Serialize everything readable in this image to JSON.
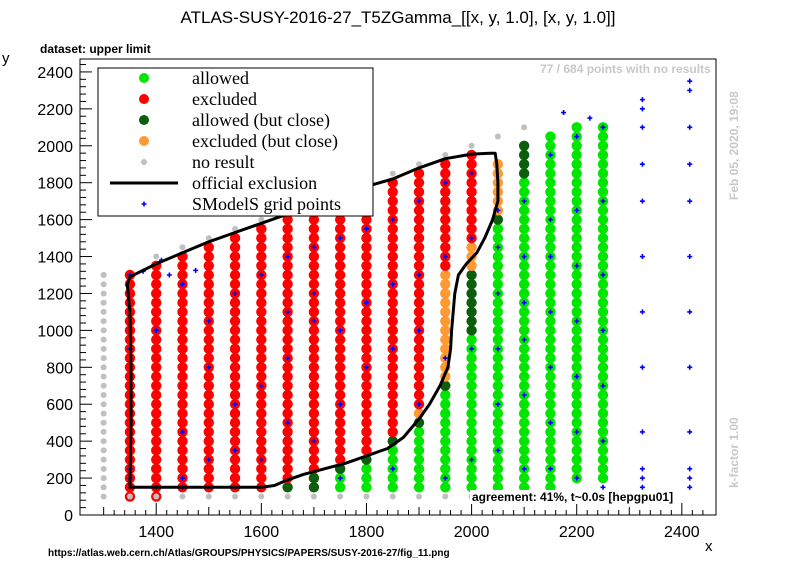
{
  "title": "ATLAS-SUSY-2016-27_T5ZGamma_[[x, y, 1.0], [x, y, 1.0]]",
  "dataset_label": "dataset: upper limit",
  "no_result_note": "77 / 684 points with no results",
  "agreement": "agreement: 41%, t~0.0s [hepgpu01]",
  "footer_url": "https://atlas.web.cern.ch/Atlas/GROUPS/PHYSICS/PAPERS/SUSY-2016-27/fig_11.png",
  "timestamp": "Feb 05, 2020, 19:08",
  "kfactor": "k-factor 1.00",
  "colors": {
    "allowed": "#00e600",
    "excluded": "#ff0000",
    "allowed_close": "#0b5e0b",
    "excluded_close": "#ff9a33",
    "no_result": "#c0c0c0",
    "official": "#000000",
    "grid_point": "#0000ff"
  },
  "chart_data": {
    "type": "scatter",
    "title": "ATLAS-SUSY-2016-27_T5ZGamma_[[x, y, 1.0], [x, y, 1.0]]",
    "xlabel": "x",
    "ylabel": "y",
    "xlim": [
      1255,
      2465
    ],
    "ylim": [
      0,
      2470
    ],
    "x_ticks": [
      1400,
      1600,
      1800,
      2000,
      2200,
      2400
    ],
    "y_ticks": [
      0,
      200,
      400,
      600,
      800,
      1000,
      1200,
      1400,
      1600,
      1800,
      2000,
      2200,
      2400
    ],
    "grid": false,
    "legend_position": "top-left",
    "legend": [
      {
        "label": "allowed",
        "kind": "allowed"
      },
      {
        "label": "excluded",
        "kind": "excluded"
      },
      {
        "label": "allowed (but close)",
        "kind": "allowed_close"
      },
      {
        "label": "excluded (but close)",
        "kind": "excluded_close"
      },
      {
        "label": "no result",
        "kind": "no_result"
      },
      {
        "label": "official exclusion",
        "kind": "official"
      },
      {
        "label": "SModelS grid points",
        "kind": "grid_point"
      }
    ],
    "columns": [
      {
        "x": 1300,
        "y_min": 100,
        "y_max": 1300,
        "y_step": 50,
        "bands": [
          [
            "no_result",
            1300
          ]
        ]
      },
      {
        "x": 1350,
        "y_min": 100,
        "y_max": 1300,
        "y_step": 50,
        "bands": [
          [
            "excluded",
            1300
          ]
        ]
      },
      {
        "x": 1400,
        "y_min": 100,
        "y_max": 1350,
        "y_step": 50,
        "bands": [
          [
            "excluded",
            1350
          ]
        ]
      },
      {
        "x": 1450,
        "y_min": 150,
        "y_max": 1400,
        "y_step": 50,
        "bands": [
          [
            "excluded",
            1400
          ]
        ]
      },
      {
        "x": 1500,
        "y_min": 150,
        "y_max": 1450,
        "y_step": 50,
        "bands": [
          [
            "excluded",
            1450
          ]
        ]
      },
      {
        "x": 1550,
        "y_min": 150,
        "y_max": 1500,
        "y_step": 50,
        "bands": [
          [
            "excluded",
            1500
          ]
        ]
      },
      {
        "x": 1600,
        "y_min": 150,
        "y_max": 1550,
        "y_step": 50,
        "bands": [
          [
            "excluded",
            1550
          ]
        ]
      },
      {
        "x": 1650,
        "y_min": 150,
        "y_max": 1600,
        "y_step": 50,
        "bands": [
          [
            "allowed_close",
            150
          ],
          [
            "excluded",
            1600
          ]
        ]
      },
      {
        "x": 1700,
        "y_min": 150,
        "y_max": 1650,
        "y_step": 50,
        "bands": [
          [
            "allowed_close",
            200
          ],
          [
            "excluded",
            1650
          ]
        ]
      },
      {
        "x": 1750,
        "y_min": 150,
        "y_max": 1700,
        "y_step": 50,
        "bands": [
          [
            "allowed",
            200
          ],
          [
            "allowed_close",
            250
          ],
          [
            "excluded",
            1700
          ]
        ]
      },
      {
        "x": 1800,
        "y_min": 150,
        "y_max": 1750,
        "y_step": 50,
        "bands": [
          [
            "allowed",
            250
          ],
          [
            "allowed_close",
            300
          ],
          [
            "excluded",
            1750
          ]
        ]
      },
      {
        "x": 1850,
        "y_min": 150,
        "y_max": 1800,
        "y_step": 50,
        "bands": [
          [
            "allowed",
            350
          ],
          [
            "allowed_close",
            400
          ],
          [
            "excluded",
            1800
          ]
        ]
      },
      {
        "x": 1900,
        "y_min": 150,
        "y_max": 1850,
        "y_step": 50,
        "bands": [
          [
            "allowed",
            450
          ],
          [
            "allowed_close",
            500
          ],
          [
            "excluded_close",
            550
          ],
          [
            "excluded",
            1850
          ]
        ]
      },
      {
        "x": 1950,
        "y_min": 150,
        "y_max": 1900,
        "y_step": 50,
        "bands": [
          [
            "allowed",
            650
          ],
          [
            "allowed_close",
            700
          ],
          [
            "excluded_close",
            1300
          ],
          [
            "excluded",
            1900
          ]
        ]
      },
      {
        "x": 2000,
        "y_min": 150,
        "y_max": 1950,
        "y_step": 50,
        "bands": [
          [
            "allowed",
            950
          ],
          [
            "allowed_close",
            1300
          ],
          [
            "excluded_close",
            1450
          ],
          [
            "excluded",
            1950
          ]
        ]
      },
      {
        "x": 2050,
        "y_min": 150,
        "y_max": 1900,
        "y_step": 50,
        "bands": [
          [
            "allowed",
            1550
          ],
          [
            "allowed_close",
            1600
          ],
          [
            "excluded_close",
            1900
          ]
        ]
      },
      {
        "x": 2100,
        "y_min": 150,
        "y_max": 2000,
        "y_step": 50,
        "bands": [
          [
            "allowed",
            1800
          ],
          [
            "allowed_close",
            2000
          ]
        ]
      },
      {
        "x": 2150,
        "y_min": 150,
        "y_max": 2050,
        "y_step": 50,
        "bands": [
          [
            "allowed",
            2050
          ]
        ]
      },
      {
        "x": 2200,
        "y_min": 200,
        "y_max": 2100,
        "y_step": 50,
        "bands": [
          [
            "allowed",
            2100
          ]
        ]
      },
      {
        "x": 2250,
        "y_min": 200,
        "y_max": 2100,
        "y_step": 50,
        "bands": [
          [
            "allowed",
            2100
          ]
        ]
      }
    ],
    "no_result_extra": [
      [
        1300,
        1300
      ],
      [
        1350,
        100
      ],
      [
        1400,
        100
      ],
      [
        1450,
        100
      ],
      [
        1500,
        100
      ],
      [
        1550,
        100
      ],
      [
        1600,
        100
      ],
      [
        1650,
        100
      ],
      [
        1700,
        100
      ],
      [
        1750,
        100
      ],
      [
        1800,
        100
      ],
      [
        1850,
        100
      ],
      [
        1900,
        100
      ],
      [
        1950,
        100
      ],
      [
        2000,
        100
      ],
      [
        2050,
        100
      ],
      [
        2100,
        100
      ],
      [
        1400,
        1400
      ],
      [
        1450,
        1450
      ],
      [
        1500,
        1500
      ],
      [
        1550,
        1550
      ],
      [
        1600,
        1600
      ],
      [
        1650,
        1650
      ],
      [
        1700,
        1700
      ],
      [
        1750,
        1750
      ],
      [
        1800,
        1800
      ],
      [
        1850,
        1850
      ],
      [
        1900,
        1900
      ],
      [
        1950,
        1950
      ],
      [
        2000,
        2000
      ],
      [
        2050,
        2050
      ],
      [
        2100,
        2100
      ]
    ],
    "grid_points": [
      [
        1350,
        250
      ],
      [
        1350,
        200
      ],
      [
        1350,
        1300
      ],
      [
        1375,
        1320
      ],
      [
        1410,
        1380
      ],
      [
        1425,
        1300
      ],
      [
        1350,
        900
      ],
      [
        1400,
        1000
      ],
      [
        1450,
        1250
      ],
      [
        1475,
        1325
      ],
      [
        1500,
        1050
      ],
      [
        1550,
        1200
      ],
      [
        1500,
        800
      ],
      [
        1550,
        600
      ],
      [
        1450,
        450
      ],
      [
        1450,
        200
      ],
      [
        1500,
        300
      ],
      [
        1550,
        350
      ],
      [
        1400,
        150
      ],
      [
        1450,
        150
      ],
      [
        1600,
        1300
      ],
      [
        1650,
        1400
      ],
      [
        1700,
        1450
      ],
      [
        1650,
        1100
      ],
      [
        1700,
        1200
      ],
      [
        1650,
        850
      ],
      [
        1600,
        700
      ],
      [
        1650,
        500
      ],
      [
        1700,
        400
      ],
      [
        1600,
        300
      ],
      [
        1700,
        1050
      ],
      [
        1750,
        1500
      ],
      [
        1800,
        1550
      ],
      [
        1850,
        1600
      ],
      [
        1750,
        1000
      ],
      [
        1800,
        1150
      ],
      [
        1850,
        1250
      ],
      [
        1750,
        600
      ],
      [
        1800,
        800
      ],
      [
        1850,
        900
      ],
      [
        1750,
        200
      ],
      [
        1850,
        250
      ],
      [
        1900,
        1700
      ],
      [
        1950,
        1800
      ],
      [
        2000,
        1850
      ],
      [
        1900,
        1300
      ],
      [
        1950,
        1400
      ],
      [
        2000,
        1500
      ],
      [
        1900,
        1000
      ],
      [
        1950,
        850
      ],
      [
        2000,
        900
      ],
      [
        1900,
        600
      ],
      [
        2000,
        300
      ],
      [
        1950,
        200
      ],
      [
        2050,
        1650
      ],
      [
        2100,
        1700
      ],
      [
        2050,
        1450
      ],
      [
        2100,
        1400
      ],
      [
        2050,
        1200
      ],
      [
        2100,
        1150
      ],
      [
        2050,
        900
      ],
      [
        2100,
        950
      ],
      [
        2050,
        600
      ],
      [
        2100,
        650
      ],
      [
        2050,
        350
      ],
      [
        2100,
        250
      ],
      [
        2150,
        1950
      ],
      [
        2200,
        2050
      ],
      [
        2250,
        2100
      ],
      [
        2150,
        1600
      ],
      [
        2200,
        1650
      ],
      [
        2250,
        1700
      ],
      [
        2150,
        1400
      ],
      [
        2200,
        1350
      ],
      [
        2250,
        1300
      ],
      [
        2150,
        1100
      ],
      [
        2200,
        1050
      ],
      [
        2250,
        1000
      ],
      [
        2150,
        800
      ],
      [
        2200,
        750
      ],
      [
        2250,
        700
      ],
      [
        2150,
        500
      ],
      [
        2200,
        450
      ],
      [
        2250,
        400
      ],
      [
        2150,
        250
      ],
      [
        2200,
        200
      ],
      [
        2250,
        150
      ],
      [
        2175,
        2180
      ],
      [
        2225,
        2150
      ],
      [
        2325,
        2250
      ],
      [
        2325,
        2200
      ],
      [
        2325,
        2100
      ],
      [
        2325,
        1900
      ],
      [
        2325,
        1700
      ],
      [
        2325,
        1400
      ],
      [
        2325,
        1100
      ],
      [
        2325,
        800
      ],
      [
        2325,
        450
      ],
      [
        2325,
        250
      ],
      [
        2325,
        200
      ],
      [
        2325,
        150
      ],
      [
        2415,
        2350
      ],
      [
        2415,
        2300
      ],
      [
        2415,
        2100
      ],
      [
        2415,
        1900
      ],
      [
        2415,
        1700
      ],
      [
        2415,
        1400
      ],
      [
        2415,
        1100
      ],
      [
        2415,
        800
      ],
      [
        2415,
        450
      ],
      [
        2415,
        250
      ],
      [
        2415,
        200
      ],
      [
        2415,
        150
      ]
    ],
    "official_exclusion": [
      [
        1350,
        150
      ],
      [
        1350,
        150
      ],
      [
        1600,
        150
      ],
      [
        1625,
        160
      ],
      [
        1650,
        190
      ],
      [
        1680,
        220
      ],
      [
        1720,
        250
      ],
      [
        1760,
        280
      ],
      [
        1800,
        320
      ],
      [
        1840,
        360
      ],
      [
        1870,
        420
      ],
      [
        1900,
        520
      ],
      [
        1920,
        600
      ],
      [
        1940,
        700
      ],
      [
        1955,
        800
      ],
      [
        1960,
        900
      ],
      [
        1962,
        1000
      ],
      [
        1965,
        1100
      ],
      [
        1968,
        1200
      ],
      [
        1975,
        1300
      ],
      [
        1990,
        1360
      ],
      [
        2010,
        1420
      ],
      [
        2025,
        1500
      ],
      [
        2040,
        1600
      ],
      [
        2050,
        1700
      ],
      [
        2050,
        1800
      ],
      [
        2048,
        1900
      ],
      [
        2045,
        1960
      ],
      [
        2035,
        1960
      ],
      [
        2000,
        1955
      ],
      [
        1950,
        1930
      ],
      [
        1900,
        1880
      ],
      [
        1850,
        1820
      ],
      [
        1800,
        1780
      ],
      [
        1750,
        1730
      ],
      [
        1700,
        1680
      ],
      [
        1650,
        1630
      ],
      [
        1600,
        1580
      ],
      [
        1550,
        1530
      ],
      [
        1500,
        1480
      ],
      [
        1450,
        1420
      ],
      [
        1400,
        1360
      ],
      [
        1350,
        1290
      ],
      [
        1345,
        1250
      ],
      [
        1350,
        1100
      ],
      [
        1352,
        800
      ],
      [
        1352,
        500
      ],
      [
        1350,
        150
      ]
    ]
  }
}
